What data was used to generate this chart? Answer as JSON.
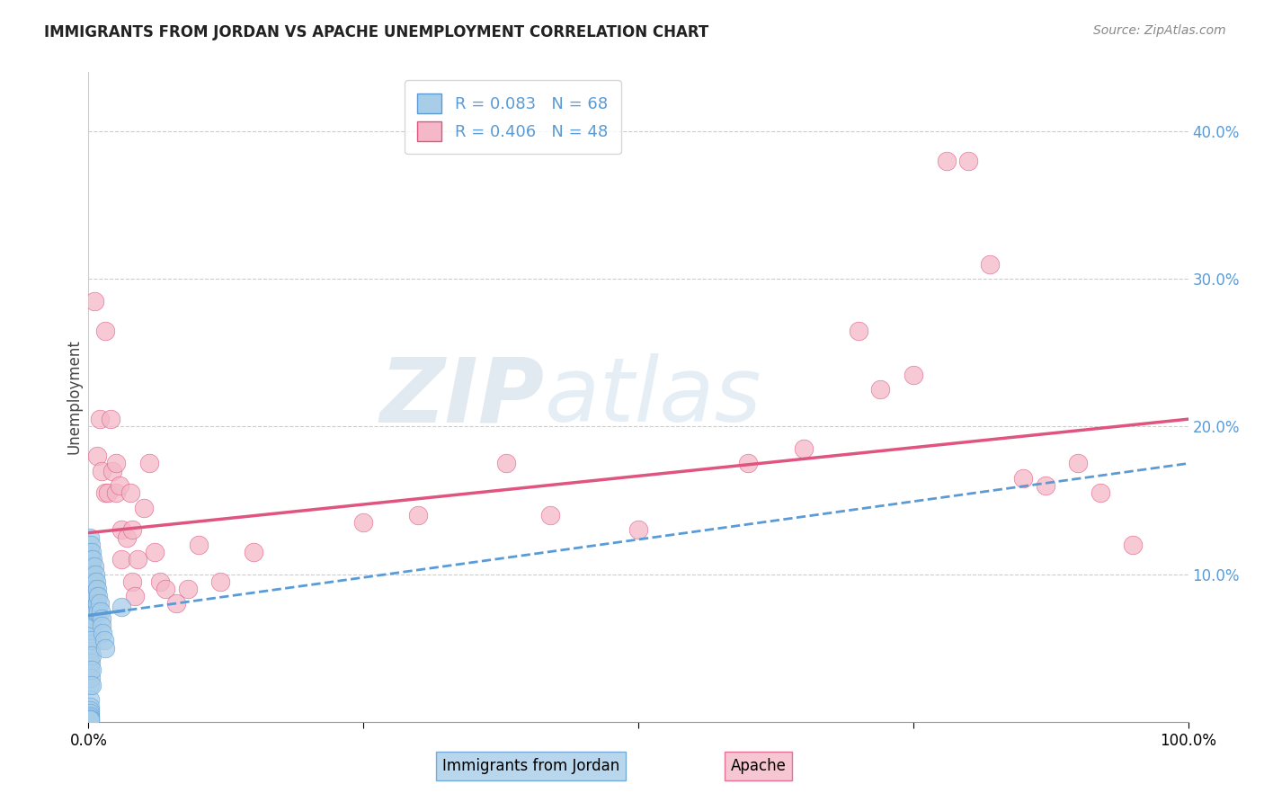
{
  "title": "IMMIGRANTS FROM JORDAN VS APACHE UNEMPLOYMENT CORRELATION CHART",
  "source": "Source: ZipAtlas.com",
  "ylabel": "Unemployment",
  "yticks": [
    0.0,
    0.1,
    0.2,
    0.3,
    0.4
  ],
  "ytick_labels": [
    "",
    "10.0%",
    "20.0%",
    "30.0%",
    "40.0%"
  ],
  "xlim": [
    0.0,
    1.0
  ],
  "ylim": [
    0.0,
    0.44
  ],
  "legend_r1": "R = 0.083",
  "legend_n1": "N = 68",
  "legend_r2": "R = 0.406",
  "legend_n2": "N = 48",
  "blue_color": "#a8cde8",
  "pink_color": "#f4b8c8",
  "trend_blue_color": "#5b9bd5",
  "trend_pink_color": "#e05580",
  "watermark_zip": "ZIP",
  "watermark_atlas": "atlas",
  "blue_trend_x0": 0.0,
  "blue_trend_y0": 0.072,
  "blue_trend_x1": 1.0,
  "blue_trend_y1": 0.175,
  "pink_trend_x0": 0.0,
  "pink_trend_y0": 0.128,
  "pink_trend_x1": 1.0,
  "pink_trend_y1": 0.205,
  "blue_scatter_x": [
    0.001,
    0.001,
    0.001,
    0.001,
    0.001,
    0.001,
    0.001,
    0.001,
    0.001,
    0.001,
    0.001,
    0.001,
    0.001,
    0.001,
    0.001,
    0.001,
    0.001,
    0.001,
    0.001,
    0.001,
    0.002,
    0.002,
    0.002,
    0.002,
    0.002,
    0.002,
    0.002,
    0.002,
    0.002,
    0.002,
    0.003,
    0.003,
    0.003,
    0.003,
    0.003,
    0.003,
    0.003,
    0.003,
    0.003,
    0.003,
    0.004,
    0.004,
    0.004,
    0.004,
    0.004,
    0.005,
    0.005,
    0.005,
    0.005,
    0.006,
    0.006,
    0.006,
    0.007,
    0.007,
    0.007,
    0.008,
    0.008,
    0.009,
    0.009,
    0.01,
    0.011,
    0.012,
    0.012,
    0.013,
    0.014,
    0.015,
    0.03,
    0.001
  ],
  "blue_scatter_y": [
    0.125,
    0.115,
    0.105,
    0.095,
    0.085,
    0.075,
    0.065,
    0.055,
    0.045,
    0.035,
    0.025,
    0.015,
    0.01,
    0.008,
    0.006,
    0.004,
    0.003,
    0.002,
    0.001,
    0.06,
    0.12,
    0.11,
    0.1,
    0.09,
    0.08,
    0.07,
    0.06,
    0.05,
    0.04,
    0.03,
    0.115,
    0.105,
    0.095,
    0.085,
    0.075,
    0.065,
    0.055,
    0.045,
    0.035,
    0.025,
    0.11,
    0.1,
    0.09,
    0.08,
    0.07,
    0.105,
    0.095,
    0.085,
    0.075,
    0.1,
    0.09,
    0.08,
    0.095,
    0.085,
    0.075,
    0.09,
    0.08,
    0.085,
    0.075,
    0.08,
    0.075,
    0.07,
    0.065,
    0.06,
    0.055,
    0.05,
    0.078,
    0.002
  ],
  "pink_scatter_x": [
    0.005,
    0.008,
    0.01,
    0.012,
    0.015,
    0.015,
    0.018,
    0.02,
    0.022,
    0.025,
    0.025,
    0.028,
    0.03,
    0.03,
    0.035,
    0.038,
    0.04,
    0.04,
    0.042,
    0.045,
    0.05,
    0.055,
    0.06,
    0.065,
    0.07,
    0.08,
    0.09,
    0.1,
    0.12,
    0.15,
    0.25,
    0.3,
    0.38,
    0.42,
    0.5,
    0.6,
    0.65,
    0.7,
    0.72,
    0.75,
    0.78,
    0.8,
    0.82,
    0.85,
    0.87,
    0.9,
    0.92,
    0.95
  ],
  "pink_scatter_y": [
    0.285,
    0.18,
    0.205,
    0.17,
    0.155,
    0.265,
    0.155,
    0.205,
    0.17,
    0.175,
    0.155,
    0.16,
    0.13,
    0.11,
    0.125,
    0.155,
    0.095,
    0.13,
    0.085,
    0.11,
    0.145,
    0.175,
    0.115,
    0.095,
    0.09,
    0.08,
    0.09,
    0.12,
    0.095,
    0.115,
    0.135,
    0.14,
    0.175,
    0.14,
    0.13,
    0.175,
    0.185,
    0.265,
    0.225,
    0.235,
    0.38,
    0.38,
    0.31,
    0.165,
    0.16,
    0.175,
    0.155,
    0.12
  ]
}
